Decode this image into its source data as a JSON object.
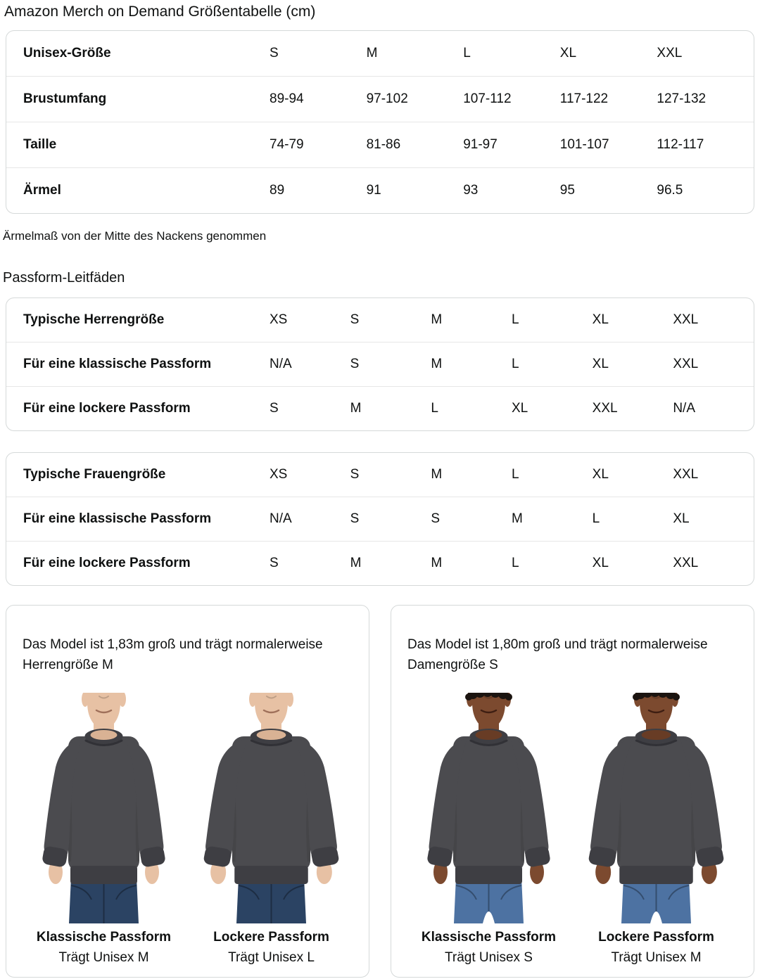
{
  "page_title": "Amazon Merch on Demand Größentabelle (cm)",
  "size_chart": {
    "rows": [
      {
        "label": "Unisex-Größe",
        "values": [
          "S",
          "M",
          "L",
          "XL",
          "XXL"
        ]
      },
      {
        "label": "Brustumfang",
        "values": [
          "89-94",
          "97-102",
          "107-112",
          "117-122",
          "127-132"
        ]
      },
      {
        "label": "Taille",
        "values": [
          "74-79",
          "81-86",
          "91-97",
          "101-107",
          "112-117"
        ]
      },
      {
        "label": "Ärmel",
        "values": [
          "89",
          "91",
          "93",
          "95",
          "96.5"
        ]
      }
    ],
    "footnote": "Ärmelmaß von der Mitte des Nackens genommen"
  },
  "fit_guides": {
    "title": "Passform-Leitfäden",
    "mens_table": {
      "rows": [
        {
          "label": "Typische Herrengröße",
          "values": [
            "XS",
            "S",
            "M",
            "L",
            "XL",
            "XXL"
          ]
        },
        {
          "label": "Für eine klassische Passform",
          "values": [
            "N/A",
            "S",
            "M",
            "L",
            "XL",
            "XXL"
          ]
        },
        {
          "label": "Für eine lockere Passform",
          "values": [
            "S",
            "M",
            "L",
            "XL",
            "XXL",
            "N/A"
          ]
        }
      ]
    },
    "womens_table": {
      "rows": [
        {
          "label": "Typische Frauengröße",
          "values": [
            "XS",
            "S",
            "M",
            "L",
            "XL",
            "XXL"
          ]
        },
        {
          "label": "Für eine klassische Passform",
          "values": [
            "N/A",
            "S",
            "S",
            "M",
            "L",
            "XL"
          ]
        },
        {
          "label": "Für eine lockere Passform",
          "values": [
            "S",
            "M",
            "M",
            "L",
            "XL",
            "XXL"
          ]
        }
      ]
    }
  },
  "model_cards": [
    {
      "description": "Das Model ist 1,83m groß und trägt normalerweise Herrengröße M",
      "figures": [
        {
          "fit_label": "Klassische Passform",
          "size_label": "Trägt Unisex M",
          "variant": "male classic"
        },
        {
          "fit_label": "Lockere Passform",
          "size_label": "Trägt Unisex L",
          "variant": "male loose"
        }
      ]
    },
    {
      "description": "Das Model ist 1,80m groß und trägt normalerweise Damengröße S",
      "figures": [
        {
          "fit_label": "Klassische Passform",
          "size_label": "Trägt Unisex S",
          "variant": "female classic"
        },
        {
          "fit_label": "Lockere Passform",
          "size_label": "Trägt Unisex M",
          "variant": "female loose"
        }
      ]
    }
  ],
  "colors": {
    "text": "#0f1111",
    "table_border": "#d5d9d9",
    "row_divider": "#e7e7e7",
    "sweatshirt": "#4b4b4f",
    "sweatshirt_trim": "#3e3e43",
    "jeans_men": "#2b4363",
    "jeans_women": "#4d72a2",
    "skin_men": "#e7c1a4",
    "skin_women": "#7c4a2f"
  }
}
